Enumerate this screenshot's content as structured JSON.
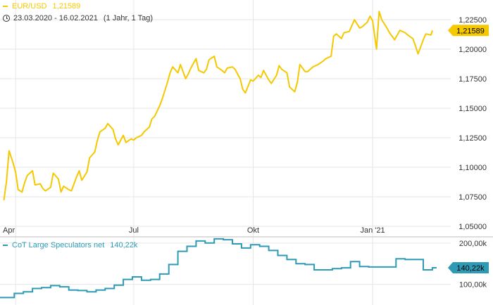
{
  "colors": {
    "price": "#F5C800",
    "price_badge_text": "#000000",
    "cot": "#2E9AB5",
    "cot_badge_text": "#000000",
    "grid": "#E6E6E6",
    "axis_text": "#333333",
    "separator": "#BBBBBB"
  },
  "legend": {
    "symbol": "EUR/USD",
    "last_value": "1,21589",
    "date_range": "23.03.2020 - 16.02.2021",
    "period": "(1 Jahr, 1 Tag)",
    "cot_name": "CoT Large Speculators net",
    "cot_value": "140,22k"
  },
  "icons": {
    "range": "clock-icon"
  },
  "chart_data": [
    {
      "type": "line",
      "title": "EUR/USD",
      "x_ticks": [
        "Apr",
        "Jul",
        "Okt",
        "Jan '21"
      ],
      "x_tick_dates": [
        "2020-04-01",
        "2020-07-01",
        "2020-10-01",
        "2021-01-01"
      ],
      "y_ticks": [
        "1,05000",
        "1,07500",
        "1,10000",
        "1,12500",
        "1,15000",
        "1,17500",
        "1,20000",
        "1,22500"
      ],
      "ylim": [
        1.05,
        1.225
      ],
      "last_label": "1,21589",
      "grid": true,
      "series": [
        {
          "name": "EUR/USD",
          "points": [
            [
              "2020-03-23",
              1.072
            ],
            [
              "2020-03-25",
              1.088
            ],
            [
              "2020-03-27",
              1.114
            ],
            [
              "2020-03-30",
              1.104
            ],
            [
              "2020-04-01",
              1.096
            ],
            [
              "2020-04-03",
              1.081
            ],
            [
              "2020-04-06",
              1.079
            ],
            [
              "2020-04-08",
              1.087
            ],
            [
              "2020-04-10",
              1.093
            ],
            [
              "2020-04-14",
              1.097
            ],
            [
              "2020-04-16",
              1.085
            ],
            [
              "2020-04-20",
              1.086
            ],
            [
              "2020-04-22",
              1.082
            ],
            [
              "2020-04-24",
              1.08
            ],
            [
              "2020-04-28",
              1.083
            ],
            [
              "2020-04-30",
              1.095
            ],
            [
              "2020-05-04",
              1.09
            ],
            [
              "2020-05-06",
              1.079
            ],
            [
              "2020-05-08",
              1.084
            ],
            [
              "2020-05-12",
              1.081
            ],
            [
              "2020-05-14",
              1.08
            ],
            [
              "2020-05-18",
              1.092
            ],
            [
              "2020-05-20",
              1.097
            ],
            [
              "2020-05-22",
              1.089
            ],
            [
              "2020-05-26",
              1.096
            ],
            [
              "2020-05-28",
              1.108
            ],
            [
              "2020-06-01",
              1.113
            ],
            [
              "2020-06-03",
              1.123
            ],
            [
              "2020-06-05",
              1.13
            ],
            [
              "2020-06-09",
              1.133
            ],
            [
              "2020-06-11",
              1.137
            ],
            [
              "2020-06-15",
              1.132
            ],
            [
              "2020-06-17",
              1.124
            ],
            [
              "2020-06-19",
              1.119
            ],
            [
              "2020-06-23",
              1.127
            ],
            [
              "2020-06-25",
              1.121
            ],
            [
              "2020-06-29",
              1.124
            ],
            [
              "2020-07-01",
              1.123
            ],
            [
              "2020-07-03",
              1.125
            ],
            [
              "2020-07-07",
              1.127
            ],
            [
              "2020-07-09",
              1.13
            ],
            [
              "2020-07-13",
              1.134
            ],
            [
              "2020-07-15",
              1.141
            ],
            [
              "2020-07-17",
              1.143
            ],
            [
              "2020-07-21",
              1.152
            ],
            [
              "2020-07-23",
              1.158
            ],
            [
              "2020-07-27",
              1.172
            ],
            [
              "2020-07-29",
              1.18
            ],
            [
              "2020-07-31",
              1.185
            ],
            [
              "2020-08-04",
              1.18
            ],
            [
              "2020-08-06",
              1.187
            ],
            [
              "2020-08-10",
              1.175
            ],
            [
              "2020-08-12",
              1.179
            ],
            [
              "2020-08-14",
              1.184
            ],
            [
              "2020-08-18",
              1.192
            ],
            [
              "2020-08-20",
              1.182
            ],
            [
              "2020-08-24",
              1.18
            ],
            [
              "2020-08-26",
              1.183
            ],
            [
              "2020-08-28",
              1.191
            ],
            [
              "2020-09-01",
              1.194
            ],
            [
              "2020-09-03",
              1.185
            ],
            [
              "2020-09-07",
              1.182
            ],
            [
              "2020-09-09",
              1.18
            ],
            [
              "2020-09-11",
              1.184
            ],
            [
              "2020-09-15",
              1.185
            ],
            [
              "2020-09-17",
              1.183
            ],
            [
              "2020-09-21",
              1.175
            ],
            [
              "2020-09-23",
              1.166
            ],
            [
              "2020-09-25",
              1.163
            ],
            [
              "2020-09-29",
              1.174
            ],
            [
              "2020-10-01",
              1.173
            ],
            [
              "2020-10-05",
              1.178
            ],
            [
              "2020-10-07",
              1.176
            ],
            [
              "2020-10-09",
              1.182
            ],
            [
              "2020-10-13",
              1.174
            ],
            [
              "2020-10-15",
              1.171
            ],
            [
              "2020-10-19",
              1.178
            ],
            [
              "2020-10-21",
              1.186
            ],
            [
              "2020-10-23",
              1.183
            ],
            [
              "2020-10-27",
              1.18
            ],
            [
              "2020-10-29",
              1.168
            ],
            [
              "2020-11-02",
              1.164
            ],
            [
              "2020-11-04",
              1.172
            ],
            [
              "2020-11-06",
              1.187
            ],
            [
              "2020-11-10",
              1.181
            ],
            [
              "2020-11-12",
              1.181
            ],
            [
              "2020-11-16",
              1.185
            ],
            [
              "2020-11-18",
              1.186
            ],
            [
              "2020-11-20",
              1.187
            ],
            [
              "2020-11-24",
              1.19
            ],
            [
              "2020-11-26",
              1.192
            ],
            [
              "2020-11-30",
              1.194
            ],
            [
              "2020-12-02",
              1.211
            ],
            [
              "2020-12-04",
              1.213
            ],
            [
              "2020-12-08",
              1.209
            ],
            [
              "2020-12-10",
              1.214
            ],
            [
              "2020-12-14",
              1.215
            ],
            [
              "2020-12-16",
              1.22
            ],
            [
              "2020-12-18",
              1.225
            ],
            [
              "2020-12-22",
              1.218
            ],
            [
              "2020-12-24",
              1.219
            ],
            [
              "2020-12-28",
              1.223
            ],
            [
              "2020-12-30",
              1.228
            ],
            [
              "2021-01-01",
              1.224
            ],
            [
              "2021-01-04",
              1.2
            ],
            [
              "2021-01-06",
              1.232
            ],
            [
              "2021-01-08",
              1.225
            ],
            [
              "2021-01-12",
              1.218
            ],
            [
              "2021-01-14",
              1.214
            ],
            [
              "2021-01-18",
              1.208
            ],
            [
              "2021-01-20",
              1.212
            ],
            [
              "2021-01-22",
              1.216
            ],
            [
              "2021-01-26",
              1.214
            ],
            [
              "2021-01-28",
              1.212
            ],
            [
              "2021-02-01",
              1.209
            ],
            [
              "2021-02-03",
              1.203
            ],
            [
              "2021-02-05",
              1.196
            ],
            [
              "2021-02-09",
              1.208
            ],
            [
              "2021-02-11",
              1.213
            ],
            [
              "2021-02-15",
              1.212
            ],
            [
              "2021-02-16",
              1.2159
            ]
          ]
        }
      ]
    },
    {
      "type": "line",
      "title": "CoT Large Speculators net",
      "y_ticks": [
        "100,00k",
        "200,00k"
      ],
      "y_tick_values": [
        100,
        200
      ],
      "ylim": [
        50,
        215
      ],
      "last_label": "140,22k",
      "grid": true,
      "series": [
        {
          "name": "CoT Large Speculators net",
          "unit": "k",
          "points": [
            [
              "2020-03-24",
              68
            ],
            [
              "2020-03-31",
              78
            ],
            [
              "2020-04-07",
              82
            ],
            [
              "2020-04-14",
              90
            ],
            [
              "2020-04-21",
              92
            ],
            [
              "2020-04-28",
              97
            ],
            [
              "2020-05-05",
              94
            ],
            [
              "2020-05-12",
              86
            ],
            [
              "2020-05-19",
              85
            ],
            [
              "2020-05-26",
              82
            ],
            [
              "2020-06-02",
              86
            ],
            [
              "2020-06-09",
              90
            ],
            [
              "2020-06-16",
              98
            ],
            [
              "2020-06-23",
              112
            ],
            [
              "2020-06-30",
              118
            ],
            [
              "2020-07-07",
              110
            ],
            [
              "2020-07-14",
              112
            ],
            [
              "2020-07-21",
              125
            ],
            [
              "2020-07-28",
              148
            ],
            [
              "2020-08-04",
              180
            ],
            [
              "2020-08-11",
              192
            ],
            [
              "2020-08-18",
              205
            ],
            [
              "2020-08-25",
              200
            ],
            [
              "2020-09-01",
              210
            ],
            [
              "2020-09-08",
              208
            ],
            [
              "2020-09-15",
              198
            ],
            [
              "2020-09-22",
              188
            ],
            [
              "2020-09-29",
              196
            ],
            [
              "2020-10-06",
              192
            ],
            [
              "2020-10-13",
              182
            ],
            [
              "2020-10-20",
              170
            ],
            [
              "2020-10-27",
              160
            ],
            [
              "2020-11-03",
              150
            ],
            [
              "2020-11-10",
              148
            ],
            [
              "2020-11-17",
              135
            ],
            [
              "2020-11-24",
              135
            ],
            [
              "2020-12-01",
              138
            ],
            [
              "2020-12-08",
              140
            ],
            [
              "2020-12-15",
              155
            ],
            [
              "2020-12-22",
              143
            ],
            [
              "2020-12-29",
              142
            ],
            [
              "2021-01-05",
              142
            ],
            [
              "2021-01-12",
              142
            ],
            [
              "2021-01-19",
              162
            ],
            [
              "2021-01-26",
              160
            ],
            [
              "2021-02-02",
              160
            ],
            [
              "2021-02-09",
              135
            ],
            [
              "2021-02-16",
              140.22
            ]
          ]
        }
      ]
    }
  ]
}
